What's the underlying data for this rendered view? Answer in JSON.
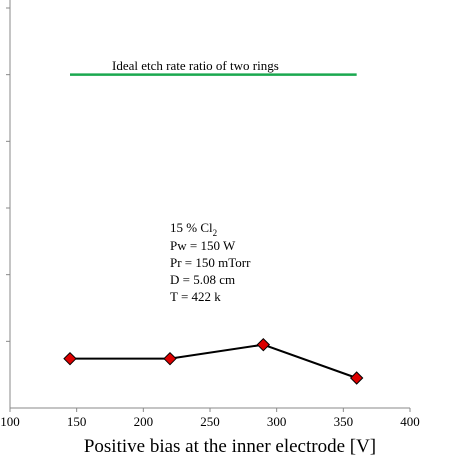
{
  "chart_data": {
    "type": "line",
    "xlabel": "Positive bias at the inner electrode [V]",
    "ylabel": "",
    "title": "",
    "xlim": [
      100,
      400
    ],
    "x_ticks": [
      "100",
      "150",
      "200",
      "250",
      "300",
      "350",
      "400"
    ],
    "y_tick_count": 6,
    "series": [
      {
        "x": [
          145,
          220,
          290,
          360
        ],
        "values": [
          0.74,
          0.74,
          0.95,
          0.45
        ],
        "color": "#000000",
        "marker": "diamond",
        "marker_color": "#dd0000"
      }
    ],
    "reference_line": {
      "label": "Ideal etch rate ratio of two rings",
      "x_start": 145,
      "x_end": 360,
      "value": 5.0,
      "color": "#1aa84f"
    },
    "conditions": {
      "cl2_value": "15 %  Cl",
      "cl2_sub": "2",
      "lines": [
        "Pw = 150 W",
        "Pr = 150 mTorr",
        "D = 5.08 cm",
        "T = 422 k"
      ]
    },
    "ylim": [
      0,
      6
    ]
  }
}
